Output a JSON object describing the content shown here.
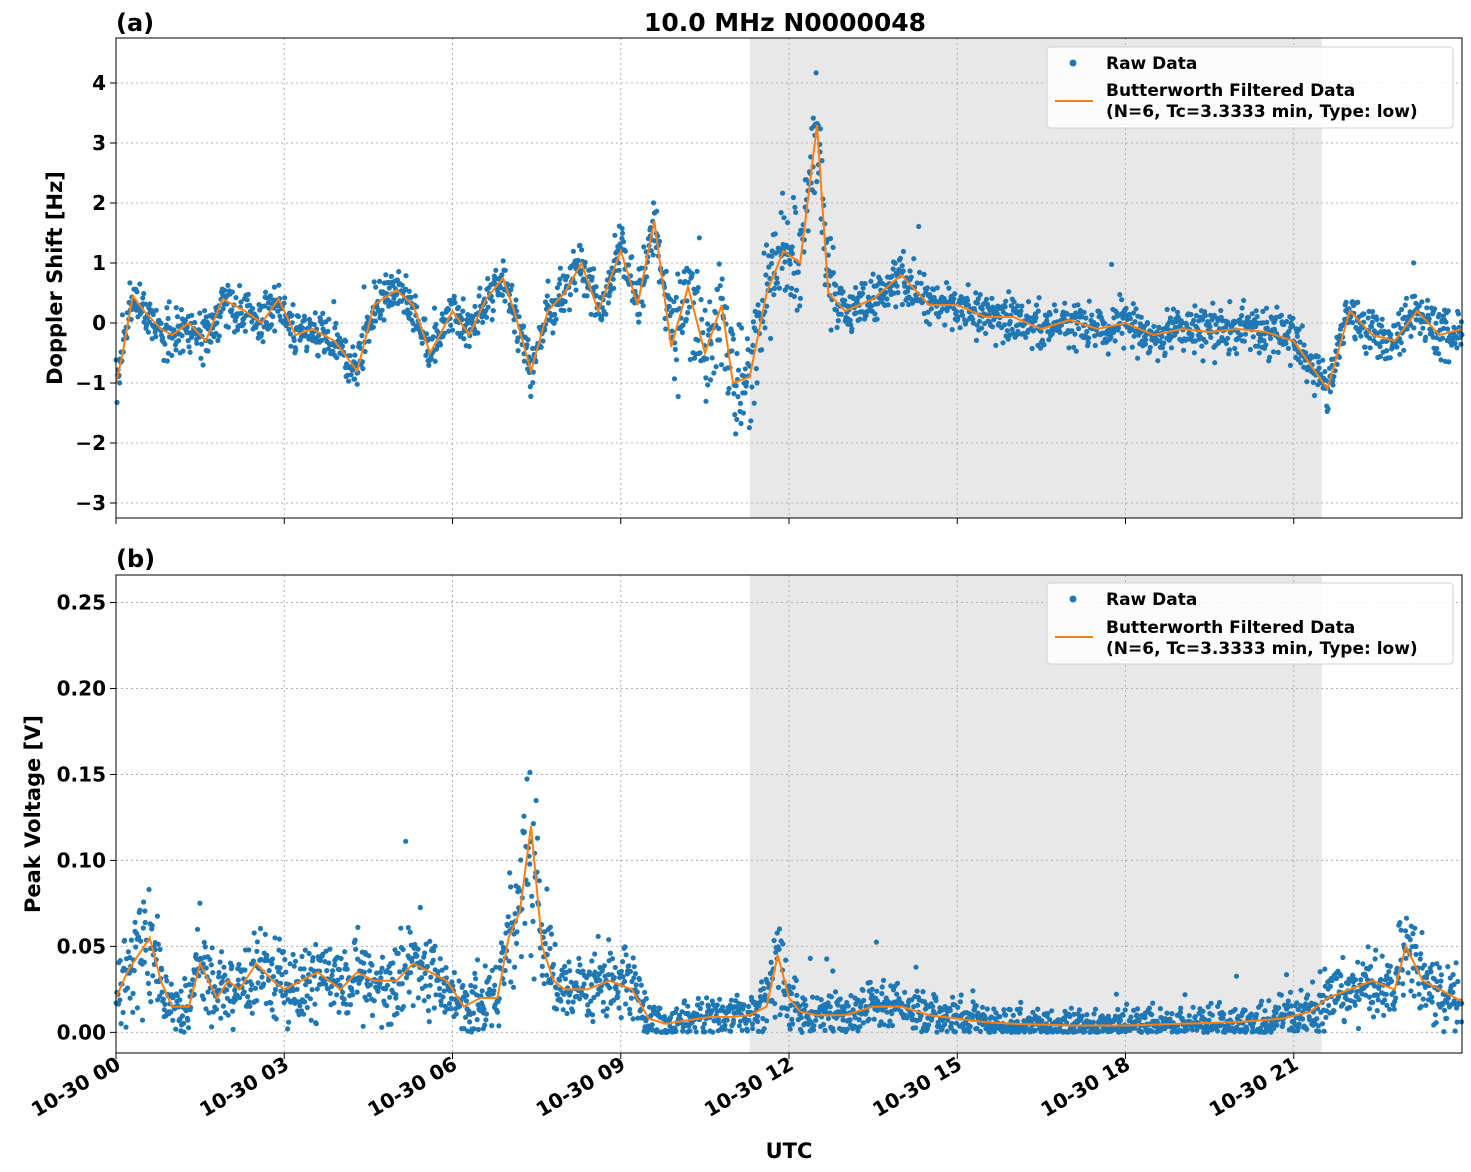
{
  "figure": {
    "title": "10.0 MHz N0000048",
    "xlabel": "UTC",
    "x_ticks": [
      "10-30 00",
      "10-30 03",
      "10-30 06",
      "10-30 09",
      "10-30 12",
      "10-30 15",
      "10-30 18",
      "10-30 21"
    ],
    "x_range_hours": [
      0,
      24
    ],
    "shaded_interval_hours": [
      11.3,
      21.5
    ],
    "grid": true,
    "colors": {
      "raw": "#1f77b4",
      "filtered": "#ff7f0e",
      "shade": "#e8e8e8"
    }
  },
  "chart_data": [
    {
      "type": "scatter",
      "panel_label": "(a)",
      "ylabel": "Doppler Shift [Hz]",
      "ylim": [
        -3.25,
        4.75
      ],
      "y_ticks": [
        "4",
        "3",
        "2",
        "1",
        "0",
        "−1",
        "−2",
        "−3"
      ],
      "y_tick_values": [
        4,
        3,
        2,
        1,
        0,
        -1,
        -2,
        -3
      ],
      "legend": {
        "placement": "top-right",
        "raw": "Raw Data",
        "filtered_line1": "Butterworth Filtered Data",
        "filtered_line2": "(N=6, Tc=3.3333 min, Type: low)"
      },
      "series": [
        {
          "name": "Butterworth Filtered Data",
          "x": [
            0,
            0.1,
            0.3,
            0.5,
            0.8,
            1.0,
            1.3,
            1.6,
            1.9,
            2.3,
            2.6,
            2.9,
            3.2,
            3.5,
            3.9,
            4.3,
            4.6,
            5.0,
            5.3,
            5.6,
            6.0,
            6.3,
            6.6,
            6.9,
            7.1,
            7.4,
            7.7,
            8.0,
            8.3,
            8.6,
            9.0,
            9.3,
            9.6,
            9.9,
            10.2,
            10.5,
            10.8,
            11.0,
            11.3,
            11.6,
            11.9,
            12.2,
            12.5,
            12.7,
            13.0,
            13.5,
            14.0,
            14.5,
            15.0,
            15.5,
            16.0,
            16.5,
            17.0,
            17.5,
            18.0,
            18.5,
            19.0,
            19.5,
            20.0,
            20.5,
            21.0,
            21.3,
            21.6,
            22.0,
            22.4,
            22.8,
            23.2,
            23.6,
            24.0
          ],
          "values": [
            -1.0,
            -0.6,
            0.45,
            0.2,
            -0.1,
            -0.2,
            0.0,
            -0.3,
            0.4,
            0.2,
            0.0,
            0.4,
            -0.2,
            -0.1,
            -0.3,
            -0.8,
            0.3,
            0.55,
            0.3,
            -0.5,
            0.2,
            -0.2,
            0.4,
            0.75,
            0.2,
            -0.8,
            0.2,
            0.5,
            1.0,
            0.2,
            1.2,
            0.3,
            1.7,
            -0.4,
            0.6,
            -0.5,
            0.3,
            -1.0,
            -0.9,
            0.5,
            1.2,
            1.0,
            3.3,
            0.5,
            0.2,
            0.4,
            0.8,
            0.3,
            0.3,
            0.1,
            0.1,
            -0.1,
            0.05,
            -0.1,
            0.0,
            -0.2,
            -0.1,
            -0.15,
            -0.1,
            -0.15,
            -0.3,
            -0.7,
            -1.1,
            0.2,
            -0.2,
            -0.3,
            0.2,
            -0.2,
            -0.1
          ]
        },
        {
          "name": "Raw Data",
          "x": [],
          "values": []
        }
      ]
    },
    {
      "type": "scatter",
      "panel_label": "(b)",
      "ylabel": "Peak Voltage [V]",
      "ylim": [
        -0.012,
        0.266
      ],
      "y_ticks": [
        "0.25",
        "0.20",
        "0.15",
        "0.10",
        "0.05",
        "0.00"
      ],
      "y_tick_values": [
        0.25,
        0.2,
        0.15,
        0.1,
        0.05,
        0.0
      ],
      "legend": {
        "placement": "top-right",
        "raw": "Raw Data",
        "filtered_line1": "Butterworth Filtered Data",
        "filtered_line2": "(N=6, Tc=3.3333 min, Type: low)"
      },
      "series": [
        {
          "name": "Butterworth Filtered Data",
          "x": [
            0,
            0.2,
            0.4,
            0.6,
            0.8,
            1.0,
            1.3,
            1.5,
            1.8,
            2.0,
            2.2,
            2.5,
            2.8,
            3.0,
            3.3,
            3.6,
            4.0,
            4.3,
            4.6,
            5.0,
            5.3,
            5.6,
            5.9,
            6.2,
            6.5,
            6.8,
            7.0,
            7.2,
            7.4,
            7.6,
            7.8,
            8.0,
            8.4,
            8.8,
            9.2,
            9.5,
            9.8,
            10.2,
            10.6,
            11.0,
            11.3,
            11.6,
            11.8,
            12.0,
            12.2,
            12.5,
            13.0,
            13.5,
            14.0,
            14.5,
            15.0,
            15.5,
            16.0,
            17.0,
            18.0,
            19.0,
            20.0,
            20.8,
            21.3,
            21.6,
            22.0,
            22.4,
            22.8,
            23.0,
            23.3,
            23.6,
            24.0
          ],
          "values": [
            0.02,
            0.035,
            0.045,
            0.055,
            0.03,
            0.015,
            0.015,
            0.04,
            0.02,
            0.03,
            0.025,
            0.04,
            0.03,
            0.025,
            0.03,
            0.035,
            0.025,
            0.035,
            0.03,
            0.03,
            0.04,
            0.035,
            0.03,
            0.015,
            0.02,
            0.02,
            0.055,
            0.07,
            0.12,
            0.05,
            0.03,
            0.025,
            0.025,
            0.03,
            0.025,
            0.008,
            0.005,
            0.007,
            0.009,
            0.009,
            0.01,
            0.015,
            0.045,
            0.02,
            0.012,
            0.01,
            0.01,
            0.015,
            0.015,
            0.01,
            0.008,
            0.006,
            0.005,
            0.004,
            0.004,
            0.005,
            0.006,
            0.008,
            0.012,
            0.02,
            0.025,
            0.03,
            0.025,
            0.05,
            0.03,
            0.025,
            0.018
          ]
        },
        {
          "name": "Raw Data",
          "x": [],
          "values": []
        }
      ]
    }
  ]
}
